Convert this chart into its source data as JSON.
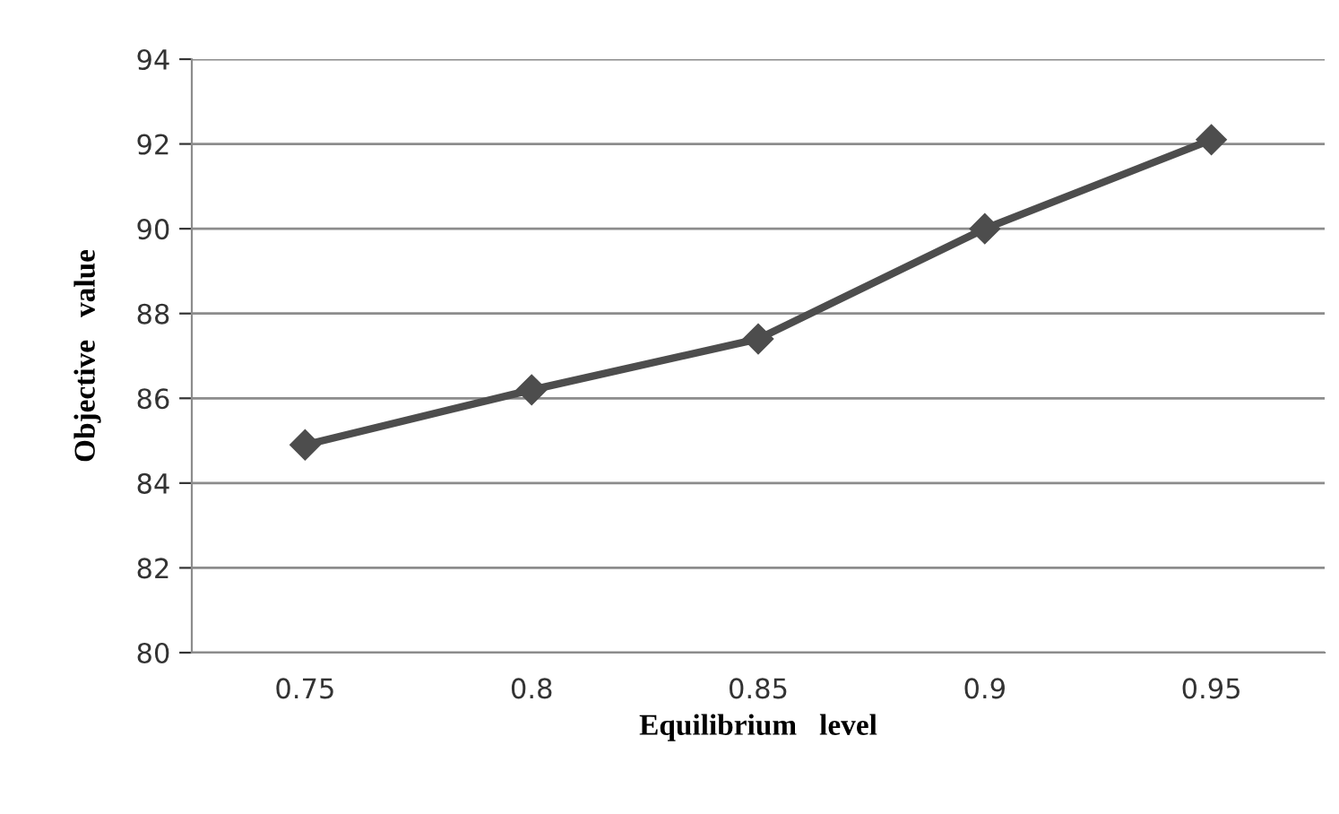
{
  "chart_data": {
    "type": "line",
    "xlabel": "Equilibrium   level",
    "ylabel": "Objective   value",
    "categories": [
      "0.75",
      "0.8",
      "0.85",
      "0.9",
      "0.95"
    ],
    "series": [
      {
        "color": "#4d4d4d",
        "values": [
          84.9,
          86.2,
          87.4,
          90.0,
          92.1
        ]
      }
    ],
    "ylim": [
      80,
      94
    ],
    "yticks": [
      80,
      82,
      84,
      86,
      88,
      90,
      92,
      94
    ],
    "grid": "y",
    "marker": "diamond",
    "line_style": "solid",
    "legend": false
  }
}
